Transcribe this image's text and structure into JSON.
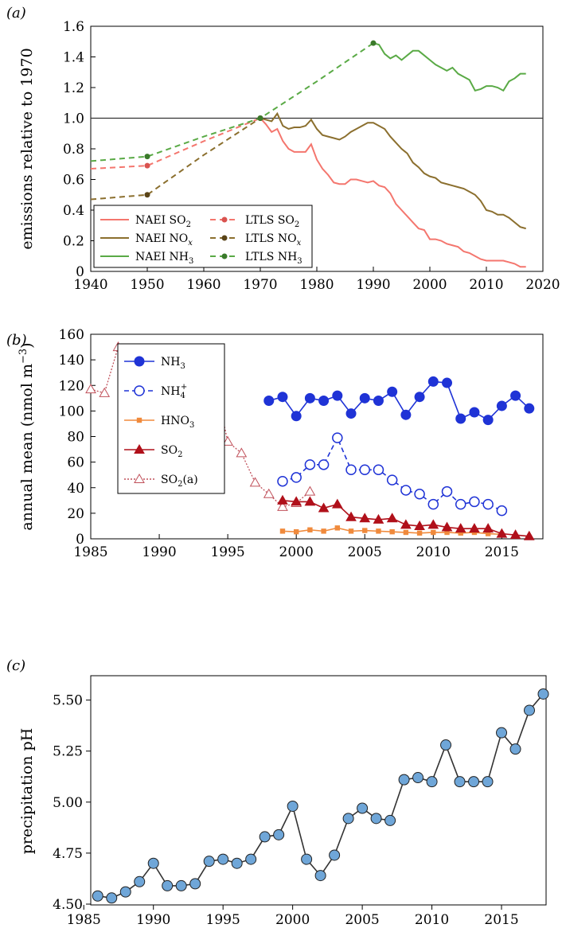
{
  "panels": [
    {
      "label_open": "(",
      "label_letter": "a",
      "label_close": ")"
    },
    {
      "label_open": "(",
      "label_letter": "b",
      "label_close": ")"
    },
    {
      "label_open": "(",
      "label_letter": "c",
      "label_close": ")"
    }
  ],
  "chart_data": [
    {
      "type": "line",
      "panel": "a",
      "xlabel": "",
      "ylabel": "emissions relative to 1970",
      "xlim": [
        1940,
        2020
      ],
      "ylim": [
        0,
        1.6
      ],
      "xticks": [
        "1940",
        "1950",
        "1960",
        "1970",
        "1980",
        "1990",
        "2000",
        "2010",
        "2020"
      ],
      "yticks": [
        "0",
        "0.2",
        "0.4",
        "0.6",
        "0.8",
        "1.0",
        "1.2",
        "1.4",
        "1.6"
      ],
      "reference_line": 1.0,
      "legend_position": "bottom-left",
      "series": [
        {
          "name": "NAEI SO",
          "sub": "2",
          "sup": "",
          "color": "#f4766e",
          "style": "solid",
          "x": [
            1970,
            1971,
            1972,
            1973,
            1974,
            1975,
            1976,
            1977,
            1978,
            1979,
            1980,
            1981,
            1982,
            1983,
            1984,
            1985,
            1986,
            1987,
            1988,
            1989,
            1990,
            1991,
            1992,
            1993,
            1994,
            1995,
            1996,
            1997,
            1998,
            1999,
            2000,
            2001,
            2002,
            2003,
            2004,
            2005,
            2006,
            2007,
            2008,
            2009,
            2010,
            2011,
            2012,
            2013,
            2014,
            2015,
            2016,
            2017
          ],
          "y": [
            1.0,
            0.96,
            0.91,
            0.93,
            0.85,
            0.8,
            0.78,
            0.78,
            0.78,
            0.83,
            0.73,
            0.67,
            0.63,
            0.58,
            0.57,
            0.57,
            0.6,
            0.6,
            0.59,
            0.58,
            0.59,
            0.56,
            0.55,
            0.51,
            0.44,
            0.4,
            0.36,
            0.32,
            0.28,
            0.27,
            0.21,
            0.21,
            0.2,
            0.18,
            0.17,
            0.16,
            0.13,
            0.12,
            0.1,
            0.08,
            0.07,
            0.07,
            0.07,
            0.07,
            0.06,
            0.05,
            0.03,
            0.03
          ]
        },
        {
          "name": "NAEI NO",
          "sub": "x",
          "sup": "",
          "color": "#8b6f2e",
          "style": "solid",
          "x": [
            1970,
            1971,
            1972,
            1973,
            1974,
            1975,
            1976,
            1977,
            1978,
            1979,
            1980,
            1981,
            1982,
            1983,
            1984,
            1985,
            1986,
            1987,
            1988,
            1989,
            1990,
            1991,
            1992,
            1993,
            1994,
            1995,
            1996,
            1997,
            1998,
            1999,
            2000,
            2001,
            2002,
            2003,
            2004,
            2005,
            2006,
            2007,
            2008,
            2009,
            2010,
            2011,
            2012,
            2013,
            2014,
            2015,
            2016,
            2017
          ],
          "y": [
            1.0,
            0.99,
            0.98,
            1.03,
            0.95,
            0.93,
            0.94,
            0.94,
            0.95,
            0.99,
            0.93,
            0.89,
            0.88,
            0.87,
            0.86,
            0.88,
            0.91,
            0.93,
            0.95,
            0.97,
            0.97,
            0.95,
            0.93,
            0.88,
            0.84,
            0.8,
            0.77,
            0.71,
            0.68,
            0.64,
            0.62,
            0.61,
            0.58,
            0.57,
            0.56,
            0.55,
            0.54,
            0.52,
            0.5,
            0.46,
            0.4,
            0.39,
            0.37,
            0.37,
            0.35,
            0.32,
            0.29,
            0.28
          ]
        },
        {
          "name": "NAEI NH",
          "sub": "3",
          "sup": "",
          "color": "#5aaa46",
          "style": "solid",
          "x": [
            1990,
            1991,
            1992,
            1993,
            1994,
            1995,
            1996,
            1997,
            1998,
            1999,
            2000,
            2001,
            2002,
            2003,
            2004,
            2005,
            2006,
            2007,
            2008,
            2009,
            2010,
            2011,
            2012,
            2013,
            2014,
            2015,
            2016,
            2017
          ],
          "y": [
            1.49,
            1.48,
            1.42,
            1.39,
            1.41,
            1.38,
            1.41,
            1.44,
            1.44,
            1.41,
            1.38,
            1.35,
            1.33,
            1.31,
            1.33,
            1.29,
            1.27,
            1.25,
            1.18,
            1.19,
            1.21,
            1.21,
            1.2,
            1.18,
            1.24,
            1.26,
            1.29,
            1.29
          ]
        },
        {
          "name": "LTLS SO",
          "sub": "2",
          "sup": "",
          "color": "#f4766e",
          "style": "dashed",
          "marker_color": "#d9534f",
          "x": [
            1940,
            1950,
            1960,
            1970
          ],
          "y": [
            0.67,
            0.69,
            0.85,
            1.0
          ],
          "markers_x": [
            1950,
            1970
          ],
          "markers_y": [
            0.69,
            1.0
          ]
        },
        {
          "name": "LTLS NO",
          "sub": "x",
          "sup": "",
          "color": "#8b6f2e",
          "style": "dashed",
          "marker_color": "#5a4418",
          "x": [
            1940,
            1950,
            1960,
            1970
          ],
          "y": [
            0.47,
            0.5,
            0.76,
            1.0
          ],
          "markers_x": [
            1950,
            1970
          ],
          "markers_y": [
            0.5,
            1.0
          ]
        },
        {
          "name": "LTLS NH",
          "sub": "3",
          "sup": "",
          "color": "#5aaa46",
          "style": "dashed",
          "marker_color": "#3a7a2a",
          "x": [
            1940,
            1950,
            1960,
            1970,
            1980,
            1990
          ],
          "y": [
            0.72,
            0.75,
            0.88,
            1.0,
            1.24,
            1.49
          ],
          "markers_x": [
            1950,
            1970,
            1990
          ],
          "markers_y": [
            0.75,
            1.0,
            1.49
          ]
        }
      ]
    },
    {
      "type": "line",
      "panel": "b",
      "xlabel": "",
      "ylabel": "annual mean (nmol m",
      "ylabel_sup": "−3",
      "ylabel_close": ")",
      "xlim": [
        1985,
        2018
      ],
      "ylim": [
        0,
        160
      ],
      "xticks": [
        "1985",
        "1990",
        "1995",
        "2000",
        "2005",
        "2010",
        "2015"
      ],
      "yticks": [
        "0",
        "20",
        "40",
        "60",
        "80",
        "100",
        "120",
        "140",
        "160"
      ],
      "legend_position": "middle-left",
      "series": [
        {
          "name": "NH",
          "sub": "3",
          "sup": "",
          "color": "#1f33d6",
          "style": "solid",
          "marker": "filled-circle",
          "x": [
            1998,
            1999,
            2000,
            2001,
            2002,
            2003,
            2004,
            2005,
            2006,
            2007,
            2008,
            2009,
            2010,
            2011,
            2012,
            2013,
            2014,
            2015,
            2016,
            2017
          ],
          "y": [
            108,
            111,
            96,
            110,
            108,
            112,
            98,
            110,
            108,
            115,
            97,
            111,
            123,
            122,
            94,
            99,
            93,
            104,
            112,
            102
          ]
        },
        {
          "name": "NH",
          "sub": "4",
          "sup": "+",
          "color": "#1f33d6",
          "style": "dashed",
          "marker": "open-circle",
          "x": [
            1999,
            2000,
            2001,
            2002,
            2003,
            2004,
            2005,
            2006,
            2007,
            2008,
            2009,
            2010,
            2011,
            2012,
            2013,
            2014,
            2015
          ],
          "y": [
            45,
            48,
            58,
            58,
            79,
            54,
            54,
            54,
            46,
            38,
            35,
            27,
            37,
            27,
            29,
            27,
            22
          ]
        },
        {
          "name": "HNO",
          "sub": "3",
          "sup": "",
          "color": "#f08a3c",
          "style": "solid",
          "marker": "square",
          "x": [
            1999,
            2000,
            2001,
            2002,
            2003,
            2004,
            2005,
            2006,
            2007,
            2008,
            2009,
            2010,
            2011,
            2012,
            2013,
            2014,
            2015
          ],
          "y": [
            6,
            5.5,
            7,
            6,
            8.5,
            6,
            6.5,
            6,
            5.5,
            5,
            4.5,
            5,
            5,
            4.5,
            5,
            4,
            3.5
          ]
        },
        {
          "name": "SO",
          "sub": "2",
          "sup": "",
          "color": "#b0101a",
          "style": "solid",
          "marker": "filled-triangle",
          "x": [
            1999,
            2000,
            2001,
            2002,
            2003,
            2004,
            2005,
            2006,
            2007,
            2008,
            2009,
            2010,
            2011,
            2012,
            2013,
            2014,
            2015,
            2016,
            2017
          ],
          "y": [
            30,
            29,
            29,
            24,
            27,
            17,
            16,
            15,
            16,
            11,
            10,
            11,
            9,
            8,
            8,
            8,
            4,
            3,
            2
          ]
        },
        {
          "name": "SO",
          "sub": "2",
          "sup": "",
          "suffix": "(a)",
          "color": "#c0505a",
          "style": "dotted",
          "marker": "open-triangle",
          "x": [
            1985,
            1986,
            1987,
            1988,
            1989,
            1990,
            1991,
            1992,
            1993,
            1994,
            1995,
            1996,
            1997,
            1998,
            1999,
            2000,
            2001
          ],
          "y": [
            117,
            114,
            150,
            104,
            95,
            86,
            88,
            82,
            113,
            125,
            76,
            67,
            44,
            35,
            25,
            28,
            37
          ]
        }
      ]
    },
    {
      "type": "line",
      "panel": "c",
      "xlabel": "",
      "ylabel": "precipitation pH",
      "xlim": [
        1985.5,
        2018.2
      ],
      "ylim": [
        4.5,
        5.6
      ],
      "xticks": [
        "1985",
        "1990",
        "1995",
        "2000",
        "2005",
        "2010",
        "2015"
      ],
      "yticks": [
        "4.50",
        "4.75",
        "5.00",
        "5.25",
        "5.50"
      ],
      "series": [
        {
          "name": "",
          "color": "#333333",
          "marker": "filled-circle",
          "marker_color": "#6fa6d8",
          "x": [
            1986,
            1987,
            1988,
            1989,
            1990,
            1991,
            1992,
            1993,
            1994,
            1995,
            1996,
            1997,
            1998,
            1999,
            2000,
            2001,
            2002,
            2003,
            2004,
            2005,
            2006,
            2007,
            2008,
            2009,
            2010,
            2011,
            2012,
            2013,
            2014,
            2015,
            2016,
            2017,
            2018
          ],
          "y": [
            4.54,
            4.53,
            4.56,
            4.61,
            4.7,
            4.59,
            4.59,
            4.6,
            4.71,
            4.72,
            4.7,
            4.72,
            4.83,
            4.84,
            4.98,
            4.72,
            4.64,
            4.74,
            4.92,
            4.97,
            4.92,
            4.91,
            5.11,
            5.12,
            5.1,
            5.28,
            5.1,
            5.1,
            5.1,
            5.34,
            5.26,
            5.45,
            5.53
          ]
        }
      ]
    }
  ]
}
